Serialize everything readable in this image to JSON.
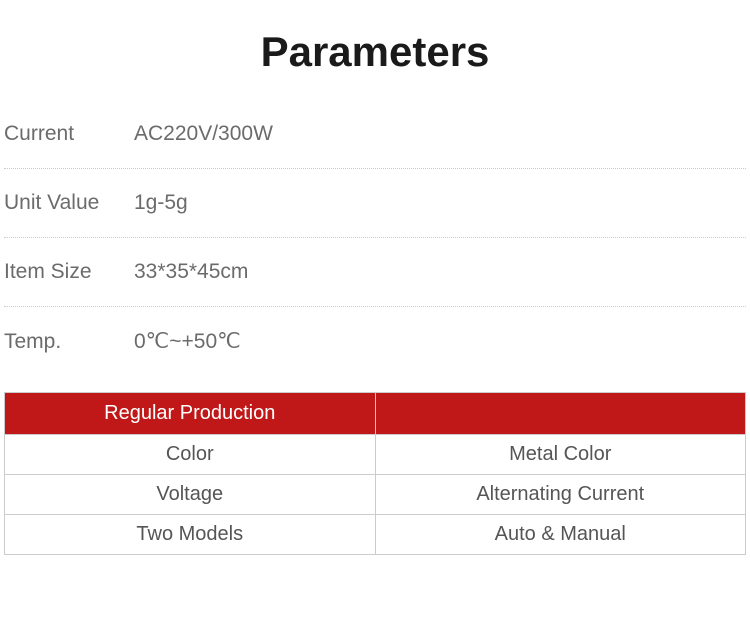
{
  "title": "Parameters",
  "params": [
    {
      "label": "Current",
      "value": "AC220V/300W"
    },
    {
      "label": "Unit Value",
      "value": "1g-5g"
    },
    {
      "label": "Item Size",
      "value": "33*35*45cm"
    },
    {
      "label": "Temp.",
      "value": "0℃~+50℃"
    }
  ],
  "table": {
    "header_left": "Regular Production",
    "header_right": "",
    "rows": [
      {
        "left": "Color",
        "right": "Metal Color"
      },
      {
        "left": "Voltage",
        "right": "Alternating Current"
      },
      {
        "left": "Two Models",
        "right": "Auto & Manual"
      }
    ],
    "header_bg": "#c01818",
    "header_color": "#ffffff",
    "border_color": "#cccccc",
    "cell_color": "#555555"
  },
  "colors": {
    "title_color": "#1a1a1a",
    "label_color": "#6b6b6b",
    "dotted_border": "#cccccc",
    "background": "#ffffff"
  }
}
